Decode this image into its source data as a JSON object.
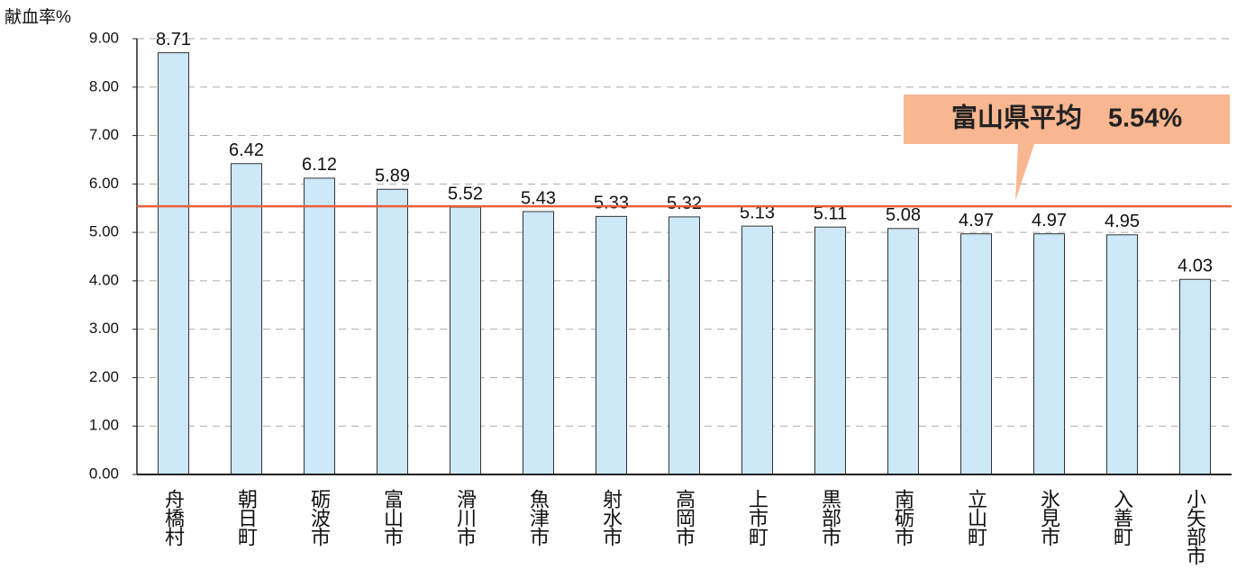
{
  "chart_data": {
    "type": "bar",
    "y_label": "献血率%",
    "categories": [
      "舟橋村",
      "朝日町",
      "砺波市",
      "富山市",
      "滑川市",
      "魚津市",
      "射水市",
      "高岡市",
      "上市町",
      "黒部市",
      "南砺市",
      "立山町",
      "氷見市",
      "入善町",
      "小矢部市"
    ],
    "values": [
      8.71,
      6.42,
      6.12,
      5.89,
      5.52,
      5.43,
      5.33,
      5.32,
      5.13,
      5.11,
      5.08,
      4.97,
      4.97,
      4.95,
      4.03
    ],
    "color": "#cce8f9",
    "ylim": [
      0,
      9
    ],
    "yticks": [
      {
        "value": 0,
        "label": "0.00"
      },
      {
        "value": 1,
        "label": "1.00"
      },
      {
        "value": 2,
        "label": "2.00"
      },
      {
        "value": 3,
        "label": "3.00"
      },
      {
        "value": 4,
        "label": "4.00"
      },
      {
        "value": 5,
        "label": "5.00"
      },
      {
        "value": 6,
        "label": "6.00"
      },
      {
        "value": 7,
        "label": "7.00"
      },
      {
        "value": 8,
        "label": "8.00"
      },
      {
        "value": 9,
        "label": "9.00"
      }
    ],
    "grid": true,
    "reference_line": {
      "value": 5.54,
      "label": "富山県平均　5.54%",
      "color": "#e8603c"
    }
  }
}
